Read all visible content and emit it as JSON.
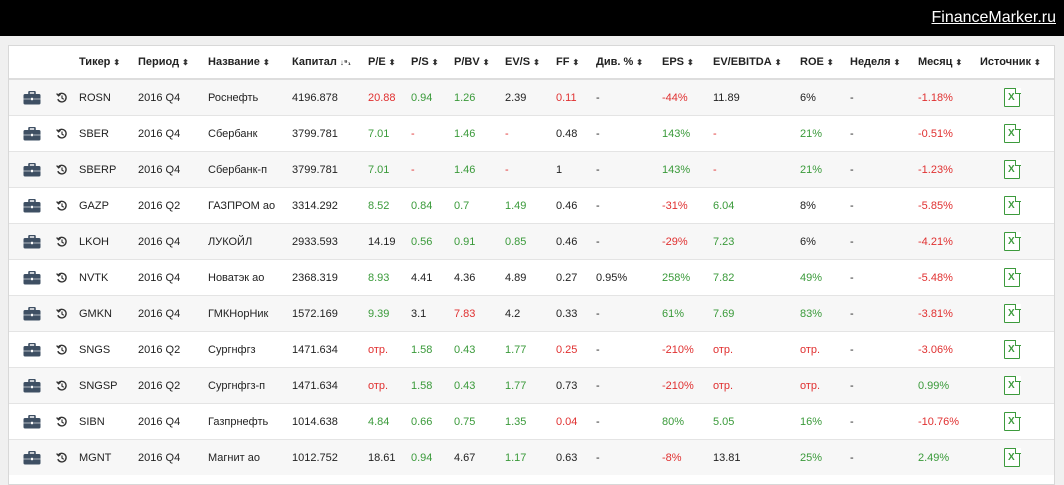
{
  "brand": "FinanceMarker.ru",
  "colors": {
    "positive": "#3a9a3a",
    "negative": "#e03030",
    "neutral": "#222222"
  },
  "columns": [
    {
      "key": "portfolio",
      "label": ""
    },
    {
      "key": "history",
      "label": ""
    },
    {
      "key": "ticker",
      "label": "Тикер",
      "sort": "⬍"
    },
    {
      "key": "period",
      "label": "Период",
      "sort": "⬍"
    },
    {
      "key": "name",
      "label": "Название",
      "sort": "⬍"
    },
    {
      "key": "cap",
      "label": "Капитал",
      "sort": "↓⁹₁"
    },
    {
      "key": "pe",
      "label": "P/E",
      "sort": "⬍"
    },
    {
      "key": "ps",
      "label": "P/S",
      "sort": "⬍"
    },
    {
      "key": "pbv",
      "label": "P/BV",
      "sort": "⬍"
    },
    {
      "key": "evs",
      "label": "EV/S",
      "sort": "⬍"
    },
    {
      "key": "ff",
      "label": "FF",
      "sort": "⬍"
    },
    {
      "key": "div",
      "label": "Див. %",
      "sort": "⬍"
    },
    {
      "key": "eps",
      "label": "EPS",
      "sort": "⬍"
    },
    {
      "key": "evebitda",
      "label": "EV/EBITDA",
      "sort": "⬍"
    },
    {
      "key": "roe",
      "label": "ROE",
      "sort": "⬍"
    },
    {
      "key": "week",
      "label": "Неделя",
      "sort": "⬍"
    },
    {
      "key": "month",
      "label": "Месяц",
      "sort": "⬍"
    },
    {
      "key": "source",
      "label": "Источник",
      "sort": "⬍"
    }
  ],
  "rows": [
    {
      "ticker": "ROSN",
      "period": "2016 Q4",
      "name": "Роснефть",
      "cap": "4196.878",
      "pe": [
        "20.88",
        "red"
      ],
      "ps": [
        "0.94",
        "green"
      ],
      "pbv": [
        "1.26",
        "green"
      ],
      "evs": [
        "2.39",
        "plain"
      ],
      "ff": [
        "0.11",
        "red"
      ],
      "div": [
        "-",
        "plain"
      ],
      "eps": [
        "-44%",
        "red"
      ],
      "evebitda": [
        "11.89",
        "plain"
      ],
      "roe": [
        "6%",
        "plain"
      ],
      "week": "-",
      "month": [
        "-1.18%",
        "red"
      ]
    },
    {
      "ticker": "SBER",
      "period": "2016 Q4",
      "name": "Сбербанк",
      "cap": "3799.781",
      "pe": [
        "7.01",
        "green"
      ],
      "ps": [
        "-",
        "red"
      ],
      "pbv": [
        "1.46",
        "green"
      ],
      "evs": [
        "-",
        "red"
      ],
      "ff": [
        "0.48",
        "plain"
      ],
      "div": [
        "-",
        "plain"
      ],
      "eps": [
        "143%",
        "green"
      ],
      "evebitda": [
        "-",
        "red"
      ],
      "roe": [
        "21%",
        "green"
      ],
      "week": "-",
      "month": [
        "-0.51%",
        "red"
      ]
    },
    {
      "ticker": "SBERP",
      "period": "2016 Q4",
      "name": "Сбербанк-п",
      "cap": "3799.781",
      "pe": [
        "7.01",
        "green"
      ],
      "ps": [
        "-",
        "red"
      ],
      "pbv": [
        "1.46",
        "green"
      ],
      "evs": [
        "-",
        "red"
      ],
      "ff": [
        "1",
        "plain"
      ],
      "div": [
        "-",
        "plain"
      ],
      "eps": [
        "143%",
        "green"
      ],
      "evebitda": [
        "-",
        "red"
      ],
      "roe": [
        "21%",
        "green"
      ],
      "week": "-",
      "month": [
        "-1.23%",
        "red"
      ]
    },
    {
      "ticker": "GAZP",
      "period": "2016 Q2",
      "name": "ГАЗПРОМ ао",
      "cap": "3314.292",
      "pe": [
        "8.52",
        "green"
      ],
      "ps": [
        "0.84",
        "green"
      ],
      "pbv": [
        "0.7",
        "green"
      ],
      "evs": [
        "1.49",
        "green"
      ],
      "ff": [
        "0.46",
        "plain"
      ],
      "div": [
        "-",
        "plain"
      ],
      "eps": [
        "-31%",
        "red"
      ],
      "evebitda": [
        "6.04",
        "green"
      ],
      "roe": [
        "8%",
        "plain"
      ],
      "week": "-",
      "month": [
        "-5.85%",
        "red"
      ]
    },
    {
      "ticker": "LKOH",
      "period": "2016 Q4",
      "name": "ЛУКОЙЛ",
      "cap": "2933.593",
      "pe": [
        "14.19",
        "plain"
      ],
      "ps": [
        "0.56",
        "green"
      ],
      "pbv": [
        "0.91",
        "green"
      ],
      "evs": [
        "0.85",
        "green"
      ],
      "ff": [
        "0.46",
        "plain"
      ],
      "div": [
        "-",
        "plain"
      ],
      "eps": [
        "-29%",
        "red"
      ],
      "evebitda": [
        "7.23",
        "green"
      ],
      "roe": [
        "6%",
        "plain"
      ],
      "week": "-",
      "month": [
        "-4.21%",
        "red"
      ]
    },
    {
      "ticker": "NVTK",
      "period": "2016 Q4",
      "name": "Новатэк ао",
      "cap": "2368.319",
      "pe": [
        "8.93",
        "green"
      ],
      "ps": [
        "4.41",
        "plain"
      ],
      "pbv": [
        "4.36",
        "plain"
      ],
      "evs": [
        "4.89",
        "plain"
      ],
      "ff": [
        "0.27",
        "plain"
      ],
      "div": [
        "0.95%",
        "plain"
      ],
      "eps": [
        "258%",
        "green"
      ],
      "evebitda": [
        "7.82",
        "green"
      ],
      "roe": [
        "49%",
        "green"
      ],
      "week": "-",
      "month": [
        "-5.48%",
        "red"
      ]
    },
    {
      "ticker": "GMKN",
      "period": "2016 Q4",
      "name": "ГМКНорНик",
      "cap": "1572.169",
      "pe": [
        "9.39",
        "green"
      ],
      "ps": [
        "3.1",
        "plain"
      ],
      "pbv": [
        "7.83",
        "red"
      ],
      "evs": [
        "4.2",
        "plain"
      ],
      "ff": [
        "0.33",
        "plain"
      ],
      "div": [
        "-",
        "plain"
      ],
      "eps": [
        "61%",
        "green"
      ],
      "evebitda": [
        "7.69",
        "green"
      ],
      "roe": [
        "83%",
        "green"
      ],
      "week": "-",
      "month": [
        "-3.81%",
        "red"
      ]
    },
    {
      "ticker": "SNGS",
      "period": "2016 Q2",
      "name": "Сургнфгз",
      "cap": "1471.634",
      "pe": [
        "отр.",
        "red"
      ],
      "ps": [
        "1.58",
        "green"
      ],
      "pbv": [
        "0.43",
        "green"
      ],
      "evs": [
        "1.77",
        "green"
      ],
      "ff": [
        "0.25",
        "red"
      ],
      "div": [
        "-",
        "plain"
      ],
      "eps": [
        "-210%",
        "red"
      ],
      "evebitda": [
        "отр.",
        "red"
      ],
      "roe": [
        "отр.",
        "red"
      ],
      "week": "-",
      "month": [
        "-3.06%",
        "red"
      ]
    },
    {
      "ticker": "SNGSP",
      "period": "2016 Q2",
      "name": "Сургнфгз-п",
      "cap": "1471.634",
      "pe": [
        "отр.",
        "red"
      ],
      "ps": [
        "1.58",
        "green"
      ],
      "pbv": [
        "0.43",
        "green"
      ],
      "evs": [
        "1.77",
        "green"
      ],
      "ff": [
        "0.73",
        "plain"
      ],
      "div": [
        "-",
        "plain"
      ],
      "eps": [
        "-210%",
        "red"
      ],
      "evebitda": [
        "отр.",
        "red"
      ],
      "roe": [
        "отр.",
        "red"
      ],
      "week": "-",
      "month": [
        "0.99%",
        "green"
      ]
    },
    {
      "ticker": "SIBN",
      "period": "2016 Q4",
      "name": "Газпрнефть",
      "cap": "1014.638",
      "pe": [
        "4.84",
        "green"
      ],
      "ps": [
        "0.66",
        "green"
      ],
      "pbv": [
        "0.75",
        "green"
      ],
      "evs": [
        "1.35",
        "green"
      ],
      "ff": [
        "0.04",
        "red"
      ],
      "div": [
        "-",
        "plain"
      ],
      "eps": [
        "80%",
        "green"
      ],
      "evebitda": [
        "5.05",
        "green"
      ],
      "roe": [
        "16%",
        "green"
      ],
      "week": "-",
      "month": [
        "-10.76%",
        "red"
      ]
    },
    {
      "ticker": "MGNT",
      "period": "2016 Q4",
      "name": "Магнит ао",
      "cap": "1012.752",
      "pe": [
        "18.61",
        "plain"
      ],
      "ps": [
        "0.94",
        "green"
      ],
      "pbv": [
        "4.67",
        "plain"
      ],
      "evs": [
        "1.17",
        "green"
      ],
      "ff": [
        "0.63",
        "plain"
      ],
      "div": [
        "-",
        "plain"
      ],
      "eps": [
        "-8%",
        "red"
      ],
      "evebitda": [
        "13.81",
        "plain"
      ],
      "roe": [
        "25%",
        "green"
      ],
      "week": "-",
      "month": [
        "2.49%",
        "green"
      ]
    }
  ],
  "icons": {
    "portfolio": "briefcase-icon",
    "history": "history-icon",
    "source": "excel-file-icon"
  },
  "excel_glyph": "X"
}
